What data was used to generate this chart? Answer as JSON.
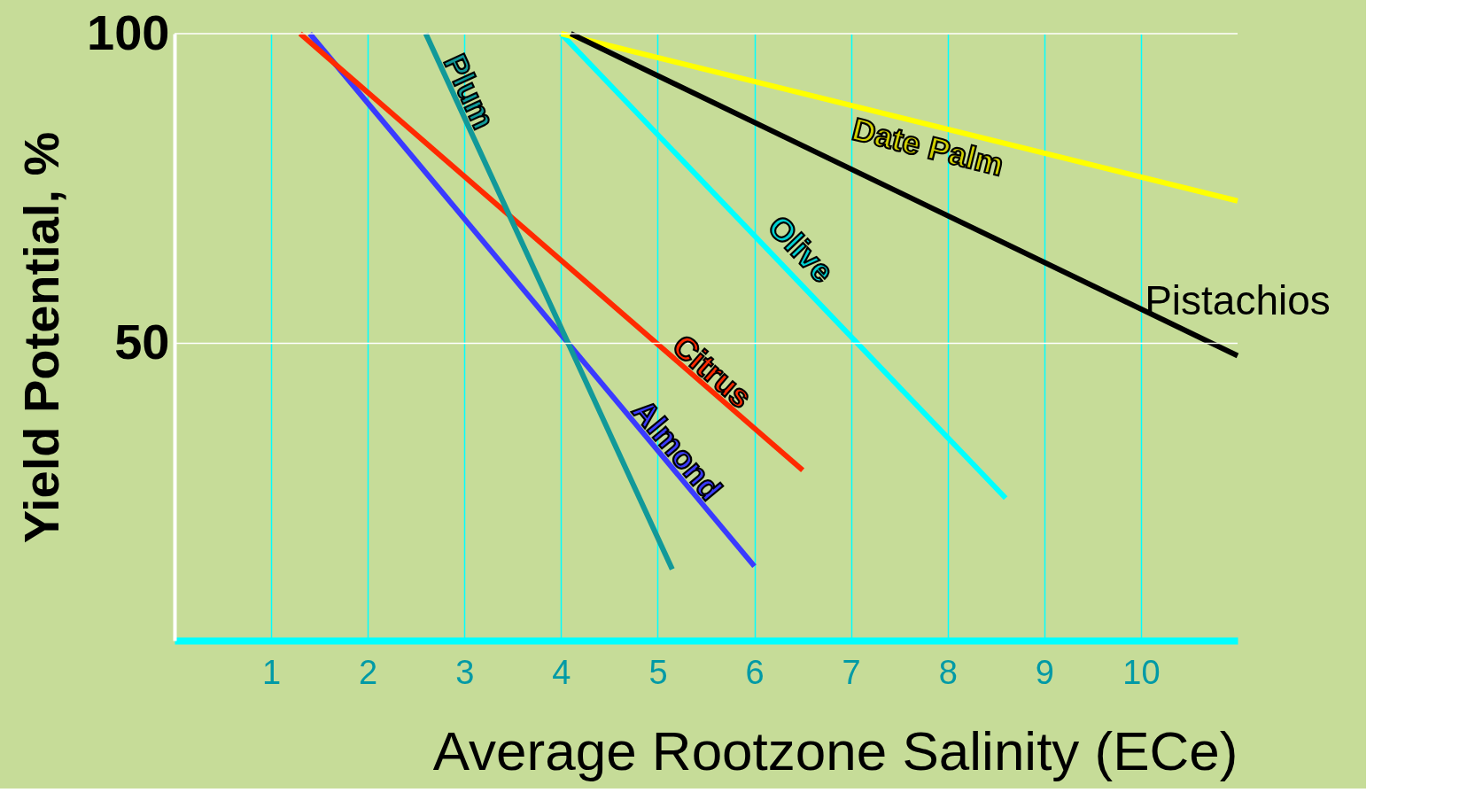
{
  "chart_data": {
    "type": "line",
    "xlabel": "Average Rootzone Salinity (ECe)",
    "ylabel": "Yield Potential, %",
    "xlim": [
      0,
      11
    ],
    "ylim": [
      2,
      100
    ],
    "xticks": [
      1,
      2,
      3,
      4,
      5,
      6,
      7,
      8,
      9,
      10
    ],
    "yticks": [
      50,
      100
    ],
    "grid": "x",
    "ref_lines": [
      {
        "axis": "y",
        "value": 50,
        "color": "#ffffff"
      },
      {
        "axis": "y",
        "value": 100,
        "color": "#ffffff"
      }
    ],
    "legend": false,
    "marker": "none",
    "line_style": "solid",
    "series": [
      {
        "name": "Almond",
        "color": "#3a3aff",
        "x": [
          1.4,
          6.0
        ],
        "values": [
          100,
          14
        ]
      },
      {
        "name": "Citrus",
        "color": "#ff2a00",
        "x": [
          1.3,
          6.5
        ],
        "values": [
          100,
          29.5
        ]
      },
      {
        "name": "Plum",
        "color": "#119999",
        "x": [
          2.6,
          5.15
        ],
        "values": [
          100,
          13.5
        ]
      },
      {
        "name": "Olive",
        "color": "#00ffff",
        "x": [
          4.0,
          8.6
        ],
        "values": [
          100,
          25
        ]
      },
      {
        "name": "Date Palm",
        "color": "#ffff00",
        "x": [
          4.0,
          11.0
        ],
        "values": [
          100,
          73
        ]
      },
      {
        "name": "Pistachios",
        "color": "#000000",
        "x": [
          4.1,
          11.0
        ],
        "values": [
          100,
          48
        ]
      }
    ]
  }
}
